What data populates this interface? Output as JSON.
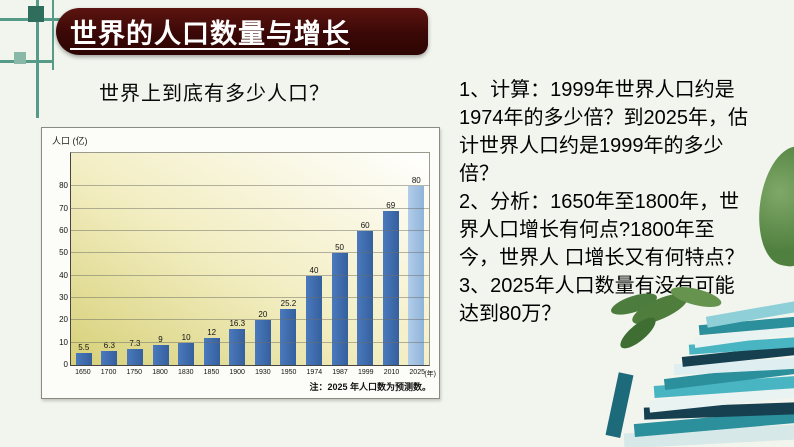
{
  "slide": {
    "title": "世界的人口数量与增长",
    "question": "世界上到底有多少人口？",
    "questions": [
      "1、计算：1999年世界人口约是1974年的多少倍？到2025年，估计世界人口约是1999年的多少倍？",
      "2、分析：1650年至1800年，世界人口增长有何点?1800年至今，世界人 口增长又有何特点？",
      "3、2025年人口数量有没有可能达到80万？"
    ],
    "colors": {
      "title_banner": "#3a0806",
      "title_text": "#ffffff",
      "background": "#f2f5ee",
      "ornament_teal": "#569b88"
    }
  },
  "chart_data": {
    "type": "bar",
    "title": "",
    "ylabel": "人口 (亿)",
    "xlabel": "",
    "x_axis_unit": "(年)",
    "categories": [
      "1650",
      "1700",
      "1750",
      "1800",
      "1830",
      "1850",
      "1900",
      "1930",
      "1950",
      "1974",
      "1987",
      "1999",
      "2010",
      "2025"
    ],
    "values": [
      5.5,
      6.3,
      7.3,
      9,
      10,
      12,
      16.3,
      20,
      25.2,
      40,
      50,
      60,
      69,
      80
    ],
    "yticks": [
      0,
      10,
      20,
      30,
      40,
      50,
      60,
      70,
      80
    ],
    "ylim": [
      0,
      80
    ],
    "grid": true,
    "legend": "none",
    "note": "注：2025 年人口数为预测数。",
    "bar_color": "#3e6cb0",
    "predicted_bar_color": "#9fc2e4",
    "predicted_category": "2025"
  }
}
